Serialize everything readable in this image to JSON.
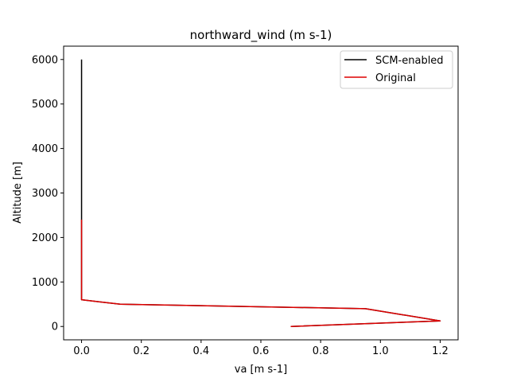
{
  "chart_data": {
    "type": "line",
    "title": "northward_wind (m s-1)",
    "xlabel": "va [m s-1]",
    "ylabel": "Altitude [m]",
    "xlim": [
      -0.06,
      1.26
    ],
    "ylim": [
      -300,
      6300
    ],
    "xticks": [
      0.0,
      0.2,
      0.4,
      0.6,
      0.8,
      1.0,
      1.2
    ],
    "xtick_labels": [
      "0.0",
      "0.2",
      "0.4",
      "0.6",
      "0.8",
      "1.0",
      "1.2"
    ],
    "yticks": [
      0,
      1000,
      2000,
      3000,
      4000,
      5000,
      6000
    ],
    "ytick_labels": [
      "0",
      "1000",
      "2000",
      "3000",
      "4000",
      "5000",
      "6000"
    ],
    "grid": false,
    "legend_position": "top-right",
    "series": [
      {
        "name": "SCM-enabled",
        "color": "#000000",
        "points": [
          {
            "x": 0.7,
            "y": 0
          },
          {
            "x": 1.2,
            "y": 125
          },
          {
            "x": 0.95,
            "y": 400
          },
          {
            "x": 0.13,
            "y": 500
          },
          {
            "x": 0.0,
            "y": 600
          },
          {
            "x": 0.0,
            "y": 2400
          },
          {
            "x": 0.0,
            "y": 6000
          }
        ]
      },
      {
        "name": "Original",
        "color": "#dd0000",
        "points": [
          {
            "x": 0.7,
            "y": 0
          },
          {
            "x": 1.2,
            "y": 125
          },
          {
            "x": 0.95,
            "y": 400
          },
          {
            "x": 0.13,
            "y": 500
          },
          {
            "x": 0.0,
            "y": 600
          },
          {
            "x": 0.0,
            "y": 2400
          }
        ]
      }
    ]
  }
}
